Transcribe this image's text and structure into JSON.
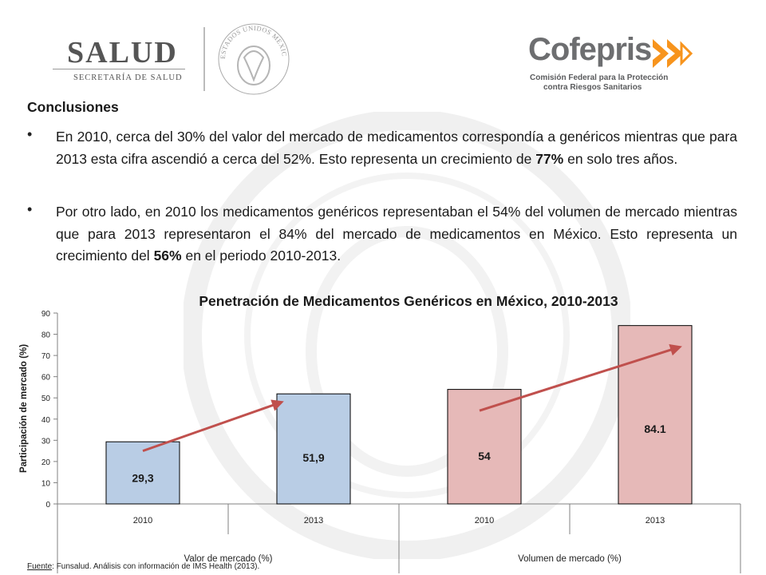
{
  "header": {
    "salud_title": "SALUD",
    "salud_subtitle": "SECRETARÍA DE SALUD",
    "seal_text": "ESTADOS UNIDOS MEXICANOS",
    "cofepris_name": "Cofepris",
    "cofepris_line1": "Comisión Federal para la Protección",
    "cofepris_line2": "contra Riesgos Sanitarios",
    "colors": {
      "cofepris_orange": "#f7941d",
      "cofepris_gray": "#6d6e70"
    }
  },
  "content": {
    "heading": "Conclusiones",
    "bullets": [
      {
        "before": "En 2010, cerca del 30% del valor del mercado de medicamentos correspondía a genéricos mientras que para 2013 esta cifra ascendió a cerca del 52%. Esto representa un crecimiento de ",
        "bold": "77%",
        "after": " en solo tres años."
      },
      {
        "before": "Por otro lado, en 2010 los medicamentos genéricos representaban el 54% del volumen de mercado mientras que para 2013 representaron el 84% del mercado de medicamentos en México. Esto representa un crecimiento del ",
        "bold": "56%",
        "after": " en el periodo 2010-2013."
      }
    ]
  },
  "chart_data": {
    "type": "bar",
    "title": "Penetración de Medicamentos Genéricos en México, 2010-2013",
    "ylabel": "Participación de mercado (%)",
    "xlabel": "",
    "ylim": [
      0,
      90
    ],
    "yticks": [
      0,
      10,
      20,
      30,
      40,
      50,
      60,
      70,
      80,
      90
    ],
    "grid": false,
    "groups": [
      {
        "name": "Valor de mercado (%)",
        "color": "#b9cde5",
        "categories": [
          "2010",
          "2013"
        ],
        "values": [
          29.3,
          51.9
        ],
        "labels": [
          "29,3",
          "51,9"
        ]
      },
      {
        "name": "Volumen de mercado (%)",
        "color": "#e6b9b8",
        "categories": [
          "2010",
          "2013"
        ],
        "values": [
          54,
          84.1
        ],
        "labels": [
          "54",
          "84.1"
        ]
      }
    ],
    "trend_arrows": [
      {
        "from": [
          "2010",
          25
        ],
        "to": [
          "2013",
          48
        ]
      },
      {
        "from": [
          "2010",
          44
        ],
        "to": [
          "2013",
          74
        ]
      }
    ],
    "colors": {
      "arrow": "#c0504d",
      "bar_border": "#000000"
    }
  },
  "footnote": {
    "label": "Fuente",
    "text": ": Funsalud. Análisis con información de IMS Health (2013)."
  }
}
